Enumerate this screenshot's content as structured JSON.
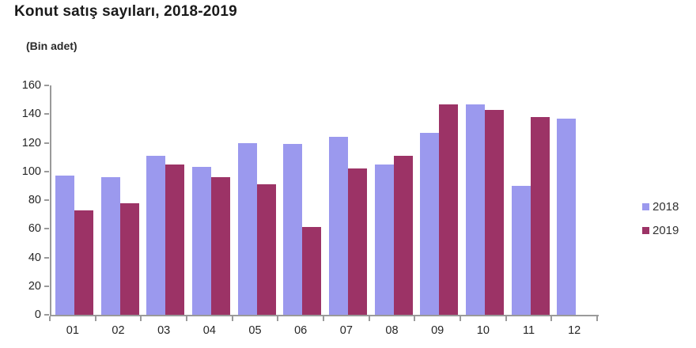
{
  "chart": {
    "title": "Konut satış sayıları, 2018-2019",
    "unit_label": "(Bin adet)"
  },
  "chart_data": {
    "type": "bar",
    "title": "Konut satış sayıları, 2018-2019",
    "subtitle": "(Bin adet)",
    "categories": [
      "01",
      "02",
      "03",
      "04",
      "05",
      "06",
      "07",
      "08",
      "09",
      "10",
      "11",
      "12"
    ],
    "series": [
      {
        "name": "2018",
        "color": "#9b99ee",
        "values": [
          97,
          96,
          111,
          103,
          120,
          119,
          124,
          105,
          127,
          147,
          90,
          137
        ]
      },
      {
        "name": "2019",
        "color": "#9c3366",
        "values": [
          73,
          78,
          105,
          96,
          91,
          61,
          102,
          111,
          147,
          143,
          138,
          null
        ]
      }
    ],
    "xlabel": "",
    "ylabel": "",
    "ylim": [
      0,
      160
    ],
    "ytick_step": 20,
    "yticks": [
      0,
      20,
      40,
      60,
      80,
      100,
      120,
      140,
      160
    ],
    "grid": false,
    "legend_position": "right",
    "axis_color": "#9a9a9a",
    "text_color": "#262626"
  },
  "legend": {
    "items": [
      {
        "label": "2018",
        "color": "#9b99ee"
      },
      {
        "label": "2019",
        "color": "#9c3366"
      }
    ]
  }
}
